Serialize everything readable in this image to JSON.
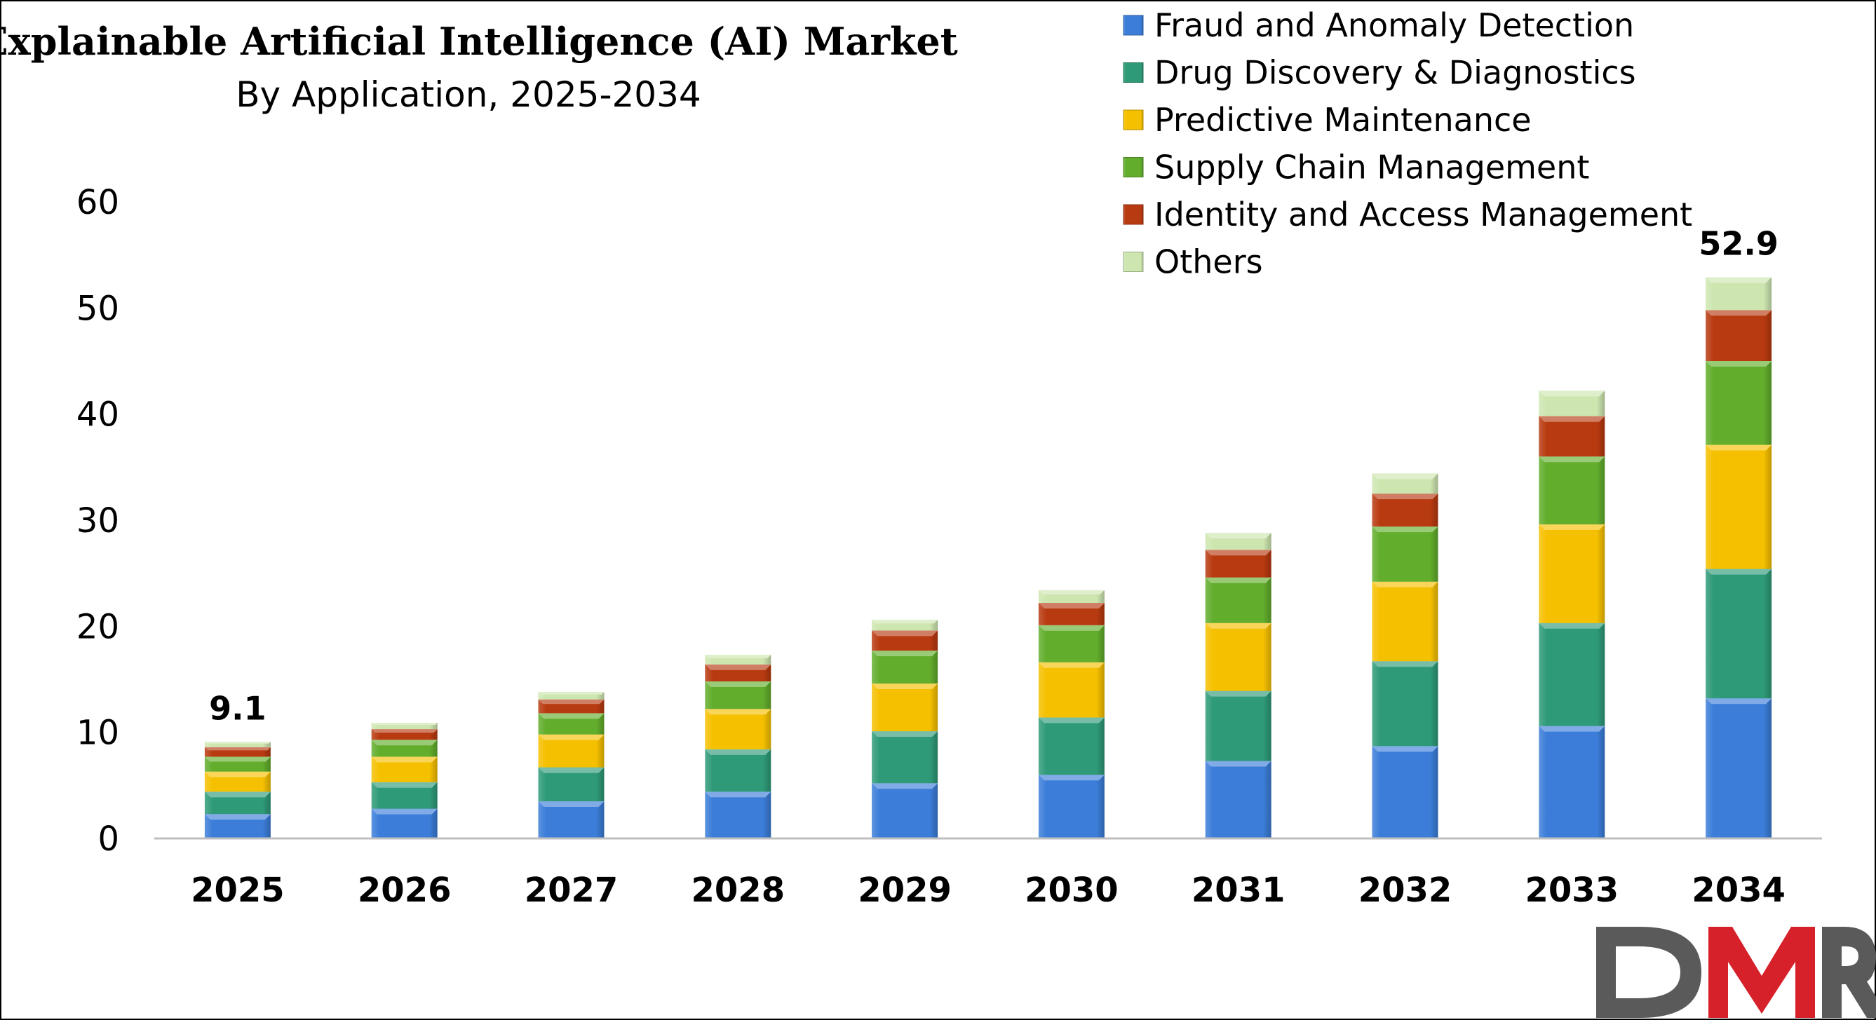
{
  "chart_data": {
    "type": "bar",
    "stacked": true,
    "title": "Explainable Artificial Intelligence (AI) Market",
    "subtitle": "By Application, 2025-2034",
    "xlabel": "",
    "ylabel": "",
    "ylim": [
      0,
      60
    ],
    "yticks": [
      0,
      10,
      20,
      30,
      40,
      50,
      60
    ],
    "grid": false,
    "legend_position": "top-right",
    "categories": [
      "2025",
      "2026",
      "2027",
      "2028",
      "2029",
      "2030",
      "2031",
      "2032",
      "2033",
      "2034"
    ],
    "series": [
      {
        "name": "Fraud and Anomaly Detection",
        "color": "#3b7dd8",
        "values": [
          2.3,
          2.8,
          3.5,
          4.4,
          5.2,
          6.0,
          7.3,
          8.7,
          10.6,
          13.2
        ]
      },
      {
        "name": "Drug Discovery & Diagnostics",
        "color": "#2e9a78",
        "values": [
          2.1,
          2.5,
          3.2,
          4.0,
          4.9,
          5.4,
          6.6,
          8.0,
          9.7,
          12.2
        ]
      },
      {
        "name": "Predictive Maintenance",
        "color": "#f5c000",
        "values": [
          1.9,
          2.4,
          3.1,
          3.8,
          4.5,
          5.2,
          6.4,
          7.5,
          9.3,
          11.7
        ]
      },
      {
        "name": "Supply Chain Management",
        "color": "#62ad2c",
        "values": [
          1.4,
          1.6,
          2.0,
          2.6,
          3.1,
          3.5,
          4.3,
          5.2,
          6.4,
          7.9
        ]
      },
      {
        "name": "Identity and Access Management",
        "color": "#b83a10",
        "values": [
          0.9,
          1.0,
          1.3,
          1.6,
          1.9,
          2.1,
          2.6,
          3.1,
          3.8,
          4.8
        ]
      },
      {
        "name": "Others",
        "color": "#cde6b0",
        "values": [
          0.5,
          0.6,
          0.7,
          0.9,
          1.0,
          1.2,
          1.6,
          1.9,
          2.4,
          3.1
        ]
      }
    ],
    "data_labels": [
      {
        "category": "2025",
        "text": "9.1"
      },
      {
        "category": "2034",
        "text": "52.9"
      }
    ]
  },
  "logo": {
    "text": "DMR",
    "colors": [
      "#5a5a5a",
      "#d6202a"
    ]
  }
}
